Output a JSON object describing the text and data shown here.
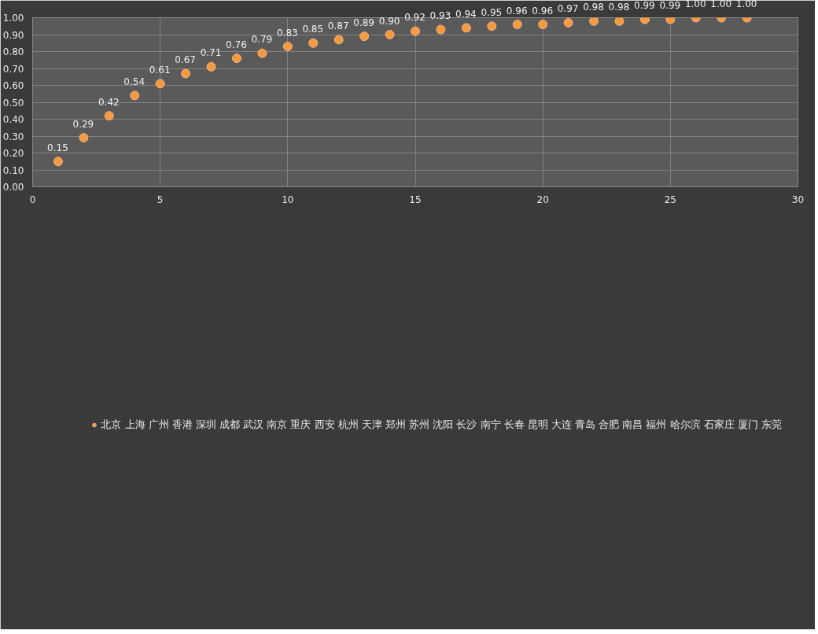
{
  "chart_data": {
    "type": "scatter",
    "x": [
      1,
      2,
      3,
      4,
      5,
      6,
      7,
      8,
      9,
      10,
      11,
      12,
      13,
      14,
      15,
      16,
      17,
      18,
      19,
      20,
      21,
      22,
      23,
      24,
      25,
      26,
      27,
      28
    ],
    "series": [
      {
        "name": "北京 上海 广州 香港 深圳 成都 武汉 南京 重庆 西安 杭州 天津 郑州 苏州 沈阳 长沙 南宁 长春 昆明 大连 青岛 合肥 南昌 福州 哈尔滨 石家庄 厦门 东莞",
        "color": "#f79a3e",
        "values": [
          0.15,
          0.29,
          0.42,
          0.54,
          0.61,
          0.67,
          0.71,
          0.76,
          0.79,
          0.83,
          0.85,
          0.87,
          0.89,
          0.9,
          0.92,
          0.93,
          0.94,
          0.95,
          0.96,
          0.96,
          0.97,
          0.98,
          0.98,
          0.99,
          0.99,
          1.0,
          1.0,
          1.0
        ],
        "value_labels": [
          "0.15",
          "0.29",
          "0.42",
          "0.54",
          "0.61",
          "0.67",
          "0.71",
          "0.76",
          "0.79",
          "0.83",
          "0.85",
          "0.87",
          "0.89",
          "0.90",
          "0.92",
          "0.93",
          "0.94",
          "0.95",
          "0.96",
          "0.96",
          "0.97",
          "0.98",
          "0.98",
          "0.99",
          "0.99",
          "1.00",
          "1.00",
          "1.00"
        ]
      }
    ],
    "xlim": [
      0,
      30
    ],
    "xticks": [
      0,
      5,
      10,
      15,
      20,
      25,
      30
    ],
    "ylim": [
      0,
      1
    ],
    "yticks": [
      {
        "value": 0,
        "label": "0.00"
      },
      {
        "value": 0.1,
        "label": "0.10"
      },
      {
        "value": 0.2,
        "label": "0.20"
      },
      {
        "value": 0.3,
        "label": "0.30"
      },
      {
        "value": 0.4,
        "label": "0.40"
      },
      {
        "value": 0.5,
        "label": "0.50"
      },
      {
        "value": 0.6,
        "label": "0.60"
      },
      {
        "value": 0.7,
        "label": "0.70"
      },
      {
        "value": 0.8,
        "label": "0.80"
      },
      {
        "value": 0.9,
        "label": "0.90"
      },
      {
        "value": 1,
        "label": "1.00"
      }
    ],
    "grid": true,
    "legend": "bottom",
    "marker": "circle"
  }
}
